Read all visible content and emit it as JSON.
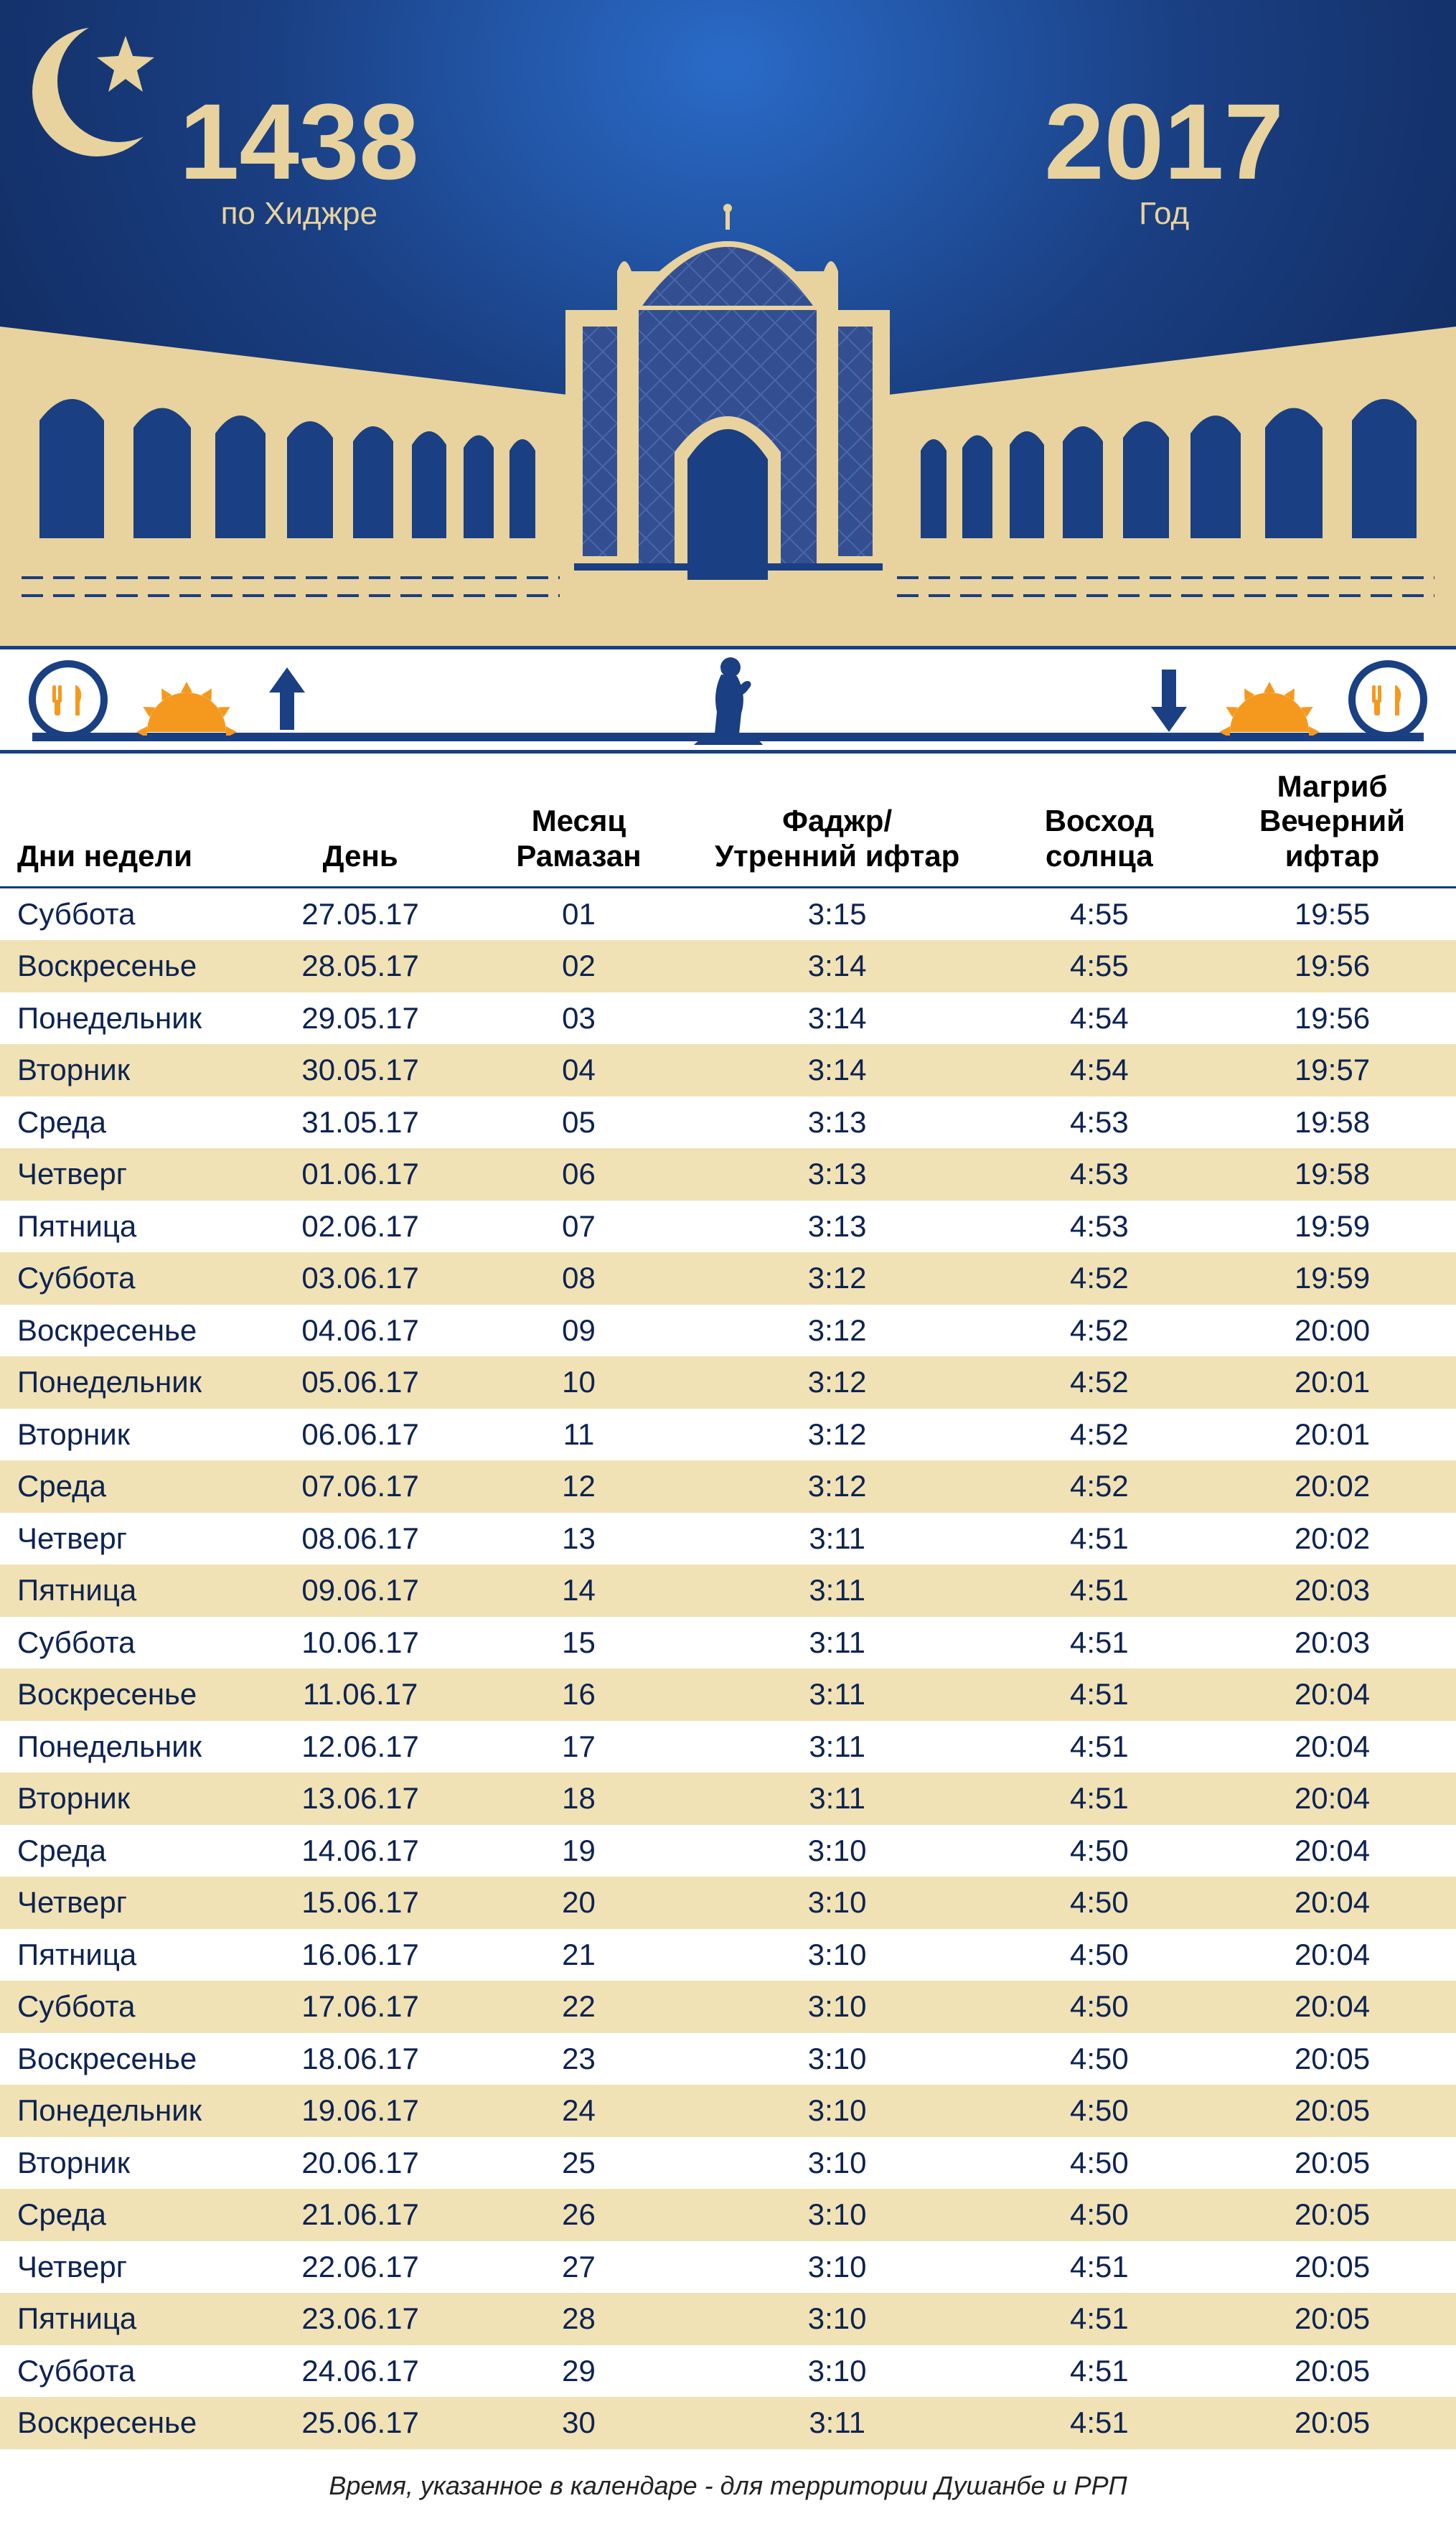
{
  "colors": {
    "sky_inner": "#2a6bc8",
    "sky_mid": "#1a3f82",
    "sky_outer": "#0d2352",
    "tan": "#e8d39e",
    "tan_dark": "#d9c287",
    "navy": "#1a3f82",
    "zebra": "#f0e2b5",
    "orange": "#f5991e",
    "text_row": "#0d2352"
  },
  "header": {
    "hijri_year": "1438",
    "hijri_label": "по Хиджре",
    "greg_year": "2017",
    "greg_label": "Год"
  },
  "table": {
    "columns": [
      "Дни недели",
      "День",
      "Месяц\nРамазан",
      "Фаджр/\nУтренний ифтар",
      "Восход\nсолнца",
      "Магриб\nВечерний ифтар"
    ],
    "rows": [
      [
        "Суббота",
        "27.05.17",
        "01",
        "3:15",
        "4:55",
        "19:55"
      ],
      [
        "Воскресенье",
        "28.05.17",
        "02",
        "3:14",
        "4:55",
        "19:56"
      ],
      [
        "Понедельник",
        "29.05.17",
        "03",
        "3:14",
        "4:54",
        "19:56"
      ],
      [
        "Вторник",
        "30.05.17",
        "04",
        "3:14",
        "4:54",
        "19:57"
      ],
      [
        "Среда",
        "31.05.17",
        "05",
        "3:13",
        "4:53",
        "19:58"
      ],
      [
        "Четверг",
        "01.06.17",
        "06",
        "3:13",
        "4:53",
        "19:58"
      ],
      [
        "Пятница",
        "02.06.17",
        "07",
        "3:13",
        "4:53",
        "19:59"
      ],
      [
        "Суббота",
        "03.06.17",
        "08",
        "3:12",
        "4:52",
        "19:59"
      ],
      [
        "Воскресенье",
        "04.06.17",
        "09",
        "3:12",
        "4:52",
        "20:00"
      ],
      [
        "Понедельник",
        "05.06.17",
        "10",
        "3:12",
        "4:52",
        "20:01"
      ],
      [
        "Вторник",
        "06.06.17",
        "11",
        "3:12",
        "4:52",
        "20:01"
      ],
      [
        "Среда",
        "07.06.17",
        "12",
        "3:12",
        "4:52",
        "20:02"
      ],
      [
        "Четверг",
        "08.06.17",
        "13",
        "3:11",
        "4:51",
        "20:02"
      ],
      [
        "Пятница",
        "09.06.17",
        "14",
        "3:11",
        "4:51",
        "20:03"
      ],
      [
        "Суббота",
        "10.06.17",
        "15",
        "3:11",
        "4:51",
        "20:03"
      ],
      [
        "Воскресенье",
        "11.06.17",
        "16",
        "3:11",
        "4:51",
        "20:04"
      ],
      [
        "Понедельник",
        "12.06.17",
        "17",
        "3:11",
        "4:51",
        "20:04"
      ],
      [
        "Вторник",
        "13.06.17",
        "18",
        "3:11",
        "4:51",
        "20:04"
      ],
      [
        "Среда",
        "14.06.17",
        "19",
        "3:10",
        "4:50",
        "20:04"
      ],
      [
        "Четверг",
        "15.06.17",
        "20",
        "3:10",
        "4:50",
        "20:04"
      ],
      [
        "Пятница",
        "16.06.17",
        "21",
        "3:10",
        "4:50",
        "20:04"
      ],
      [
        "Суббота",
        "17.06.17",
        "22",
        "3:10",
        "4:50",
        "20:04"
      ],
      [
        "Воскресенье",
        "18.06.17",
        "23",
        "3:10",
        "4:50",
        "20:05"
      ],
      [
        "Понедельник",
        "19.06.17",
        "24",
        "3:10",
        "4:50",
        "20:05"
      ],
      [
        "Вторник",
        "20.06.17",
        "25",
        "3:10",
        "4:50",
        "20:05"
      ],
      [
        "Среда",
        "21.06.17",
        "26",
        "3:10",
        "4:50",
        "20:05"
      ],
      [
        "Четверг",
        "22.06.17",
        "27",
        "3:10",
        "4:51",
        "20:05"
      ],
      [
        "Пятница",
        "23.06.17",
        "28",
        "3:10",
        "4:51",
        "20:05"
      ],
      [
        "Суббота",
        "24.06.17",
        "29",
        "3:10",
        "4:51",
        "20:05"
      ],
      [
        "Воскресенье",
        "25.06.17",
        "30",
        "3:11",
        "4:51",
        "20:05"
      ]
    ]
  },
  "footer": "Время, указанное в календаре - для территории Душанбе и РРП"
}
